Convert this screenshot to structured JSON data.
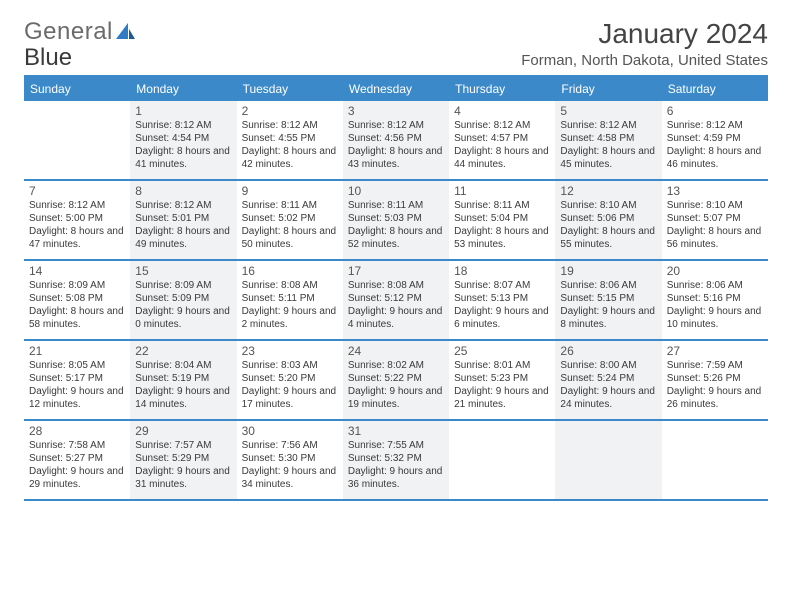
{
  "logo": {
    "part1": "General",
    "part2": "Blue"
  },
  "title": "January 2024",
  "subtitle": "Forman, North Dakota, United States",
  "colors": {
    "accent": "#3b89c9",
    "alt_bg": "#f1f2f3",
    "text": "#3a3a3a"
  },
  "day_headers": [
    "Sunday",
    "Monday",
    "Tuesday",
    "Wednesday",
    "Thursday",
    "Friday",
    "Saturday"
  ],
  "weeks": [
    [
      null,
      {
        "n": "1",
        "sunrise": "Sunrise: 8:12 AM",
        "sunset": "Sunset: 4:54 PM",
        "daylight": "Daylight: 8 hours and 41 minutes."
      },
      {
        "n": "2",
        "sunrise": "Sunrise: 8:12 AM",
        "sunset": "Sunset: 4:55 PM",
        "daylight": "Daylight: 8 hours and 42 minutes."
      },
      {
        "n": "3",
        "sunrise": "Sunrise: 8:12 AM",
        "sunset": "Sunset: 4:56 PM",
        "daylight": "Daylight: 8 hours and 43 minutes."
      },
      {
        "n": "4",
        "sunrise": "Sunrise: 8:12 AM",
        "sunset": "Sunset: 4:57 PM",
        "daylight": "Daylight: 8 hours and 44 minutes."
      },
      {
        "n": "5",
        "sunrise": "Sunrise: 8:12 AM",
        "sunset": "Sunset: 4:58 PM",
        "daylight": "Daylight: 8 hours and 45 minutes."
      },
      {
        "n": "6",
        "sunrise": "Sunrise: 8:12 AM",
        "sunset": "Sunset: 4:59 PM",
        "daylight": "Daylight: 8 hours and 46 minutes."
      }
    ],
    [
      {
        "n": "7",
        "sunrise": "Sunrise: 8:12 AM",
        "sunset": "Sunset: 5:00 PM",
        "daylight": "Daylight: 8 hours and 47 minutes."
      },
      {
        "n": "8",
        "sunrise": "Sunrise: 8:12 AM",
        "sunset": "Sunset: 5:01 PM",
        "daylight": "Daylight: 8 hours and 49 minutes."
      },
      {
        "n": "9",
        "sunrise": "Sunrise: 8:11 AM",
        "sunset": "Sunset: 5:02 PM",
        "daylight": "Daylight: 8 hours and 50 minutes."
      },
      {
        "n": "10",
        "sunrise": "Sunrise: 8:11 AM",
        "sunset": "Sunset: 5:03 PM",
        "daylight": "Daylight: 8 hours and 52 minutes."
      },
      {
        "n": "11",
        "sunrise": "Sunrise: 8:11 AM",
        "sunset": "Sunset: 5:04 PM",
        "daylight": "Daylight: 8 hours and 53 minutes."
      },
      {
        "n": "12",
        "sunrise": "Sunrise: 8:10 AM",
        "sunset": "Sunset: 5:06 PM",
        "daylight": "Daylight: 8 hours and 55 minutes."
      },
      {
        "n": "13",
        "sunrise": "Sunrise: 8:10 AM",
        "sunset": "Sunset: 5:07 PM",
        "daylight": "Daylight: 8 hours and 56 minutes."
      }
    ],
    [
      {
        "n": "14",
        "sunrise": "Sunrise: 8:09 AM",
        "sunset": "Sunset: 5:08 PM",
        "daylight": "Daylight: 8 hours and 58 minutes."
      },
      {
        "n": "15",
        "sunrise": "Sunrise: 8:09 AM",
        "sunset": "Sunset: 5:09 PM",
        "daylight": "Daylight: 9 hours and 0 minutes."
      },
      {
        "n": "16",
        "sunrise": "Sunrise: 8:08 AM",
        "sunset": "Sunset: 5:11 PM",
        "daylight": "Daylight: 9 hours and 2 minutes."
      },
      {
        "n": "17",
        "sunrise": "Sunrise: 8:08 AM",
        "sunset": "Sunset: 5:12 PM",
        "daylight": "Daylight: 9 hours and 4 minutes."
      },
      {
        "n": "18",
        "sunrise": "Sunrise: 8:07 AM",
        "sunset": "Sunset: 5:13 PM",
        "daylight": "Daylight: 9 hours and 6 minutes."
      },
      {
        "n": "19",
        "sunrise": "Sunrise: 8:06 AM",
        "sunset": "Sunset: 5:15 PM",
        "daylight": "Daylight: 9 hours and 8 minutes."
      },
      {
        "n": "20",
        "sunrise": "Sunrise: 8:06 AM",
        "sunset": "Sunset: 5:16 PM",
        "daylight": "Daylight: 9 hours and 10 minutes."
      }
    ],
    [
      {
        "n": "21",
        "sunrise": "Sunrise: 8:05 AM",
        "sunset": "Sunset: 5:17 PM",
        "daylight": "Daylight: 9 hours and 12 minutes."
      },
      {
        "n": "22",
        "sunrise": "Sunrise: 8:04 AM",
        "sunset": "Sunset: 5:19 PM",
        "daylight": "Daylight: 9 hours and 14 minutes."
      },
      {
        "n": "23",
        "sunrise": "Sunrise: 8:03 AM",
        "sunset": "Sunset: 5:20 PM",
        "daylight": "Daylight: 9 hours and 17 minutes."
      },
      {
        "n": "24",
        "sunrise": "Sunrise: 8:02 AM",
        "sunset": "Sunset: 5:22 PM",
        "daylight": "Daylight: 9 hours and 19 minutes."
      },
      {
        "n": "25",
        "sunrise": "Sunrise: 8:01 AM",
        "sunset": "Sunset: 5:23 PM",
        "daylight": "Daylight: 9 hours and 21 minutes."
      },
      {
        "n": "26",
        "sunrise": "Sunrise: 8:00 AM",
        "sunset": "Sunset: 5:24 PM",
        "daylight": "Daylight: 9 hours and 24 minutes."
      },
      {
        "n": "27",
        "sunrise": "Sunrise: 7:59 AM",
        "sunset": "Sunset: 5:26 PM",
        "daylight": "Daylight: 9 hours and 26 minutes."
      }
    ],
    [
      {
        "n": "28",
        "sunrise": "Sunrise: 7:58 AM",
        "sunset": "Sunset: 5:27 PM",
        "daylight": "Daylight: 9 hours and 29 minutes."
      },
      {
        "n": "29",
        "sunrise": "Sunrise: 7:57 AM",
        "sunset": "Sunset: 5:29 PM",
        "daylight": "Daylight: 9 hours and 31 minutes."
      },
      {
        "n": "30",
        "sunrise": "Sunrise: 7:56 AM",
        "sunset": "Sunset: 5:30 PM",
        "daylight": "Daylight: 9 hours and 34 minutes."
      },
      {
        "n": "31",
        "sunrise": "Sunrise: 7:55 AM",
        "sunset": "Sunset: 5:32 PM",
        "daylight": "Daylight: 9 hours and 36 minutes."
      },
      null,
      null,
      null
    ]
  ]
}
